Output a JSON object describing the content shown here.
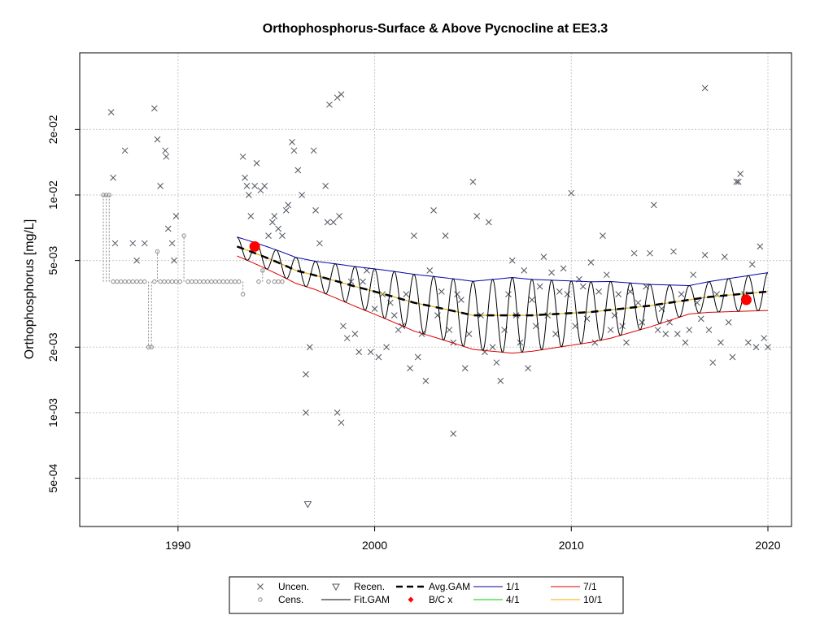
{
  "chart_data": {
    "type": "scatter",
    "title": "Orthophosphorus-Surface & Above Pycnocline at EE3.3",
    "xlabel": "",
    "ylabel": "Orthophosphorus [mg/L]",
    "y_scale": "log",
    "xlim": [
      1985,
      2021.2
    ],
    "ylim": [
      0.0003,
      0.045
    ],
    "grid": true,
    "x_ticks": [
      {
        "value": 1990,
        "label": "1990"
      },
      {
        "value": 2000,
        "label": "2000"
      },
      {
        "value": 2010,
        "label": "2010"
      },
      {
        "value": 2020,
        "label": "2020"
      }
    ],
    "y_ticks": [
      {
        "value": 0.0005,
        "label": "5e-04"
      },
      {
        "value": 0.001,
        "label": "1e-03"
      },
      {
        "value": 0.002,
        "label": "2e-03"
      },
      {
        "value": 0.005,
        "label": "5e-03"
      },
      {
        "value": 0.01,
        "label": "1e-02"
      },
      {
        "value": 0.02,
        "label": "2e-02"
      }
    ],
    "colors": {
      "uncen": "#4f5560",
      "cens": "#888888",
      "recen": "#4f5560",
      "fit": "#000000",
      "avg": "#000000",
      "bc": "#ff0000",
      "s1_1": "#0000aa",
      "s4_1": "#00cc00",
      "s7_1": "#dd0000",
      "s10_1": "#ffa500"
    },
    "series": [
      {
        "name": "Uncen.",
        "kind": "points",
        "points": [
          [
            1986.6,
            0.024
          ],
          [
            1986.7,
            0.012
          ],
          [
            1986.8,
            0.006
          ],
          [
            1987.3,
            0.016
          ],
          [
            1987.7,
            0.006
          ],
          [
            1987.9,
            0.005
          ],
          [
            1988.3,
            0.006
          ],
          [
            1988.8,
            0.025
          ],
          [
            1988.95,
            0.018
          ],
          [
            1989.1,
            0.011
          ],
          [
            1989.35,
            0.016
          ],
          [
            1989.4,
            0.015
          ],
          [
            1989.5,
            0.007
          ],
          [
            1989.7,
            0.006
          ],
          [
            1989.8,
            0.005
          ],
          [
            1989.9,
            0.008
          ],
          [
            1993.3,
            0.015
          ],
          [
            1993.4,
            0.012
          ],
          [
            1993.5,
            0.011
          ],
          [
            1993.6,
            0.01
          ],
          [
            1993.7,
            0.008
          ],
          [
            1993.9,
            0.011
          ],
          [
            1994.0,
            0.014
          ],
          [
            1994.2,
            0.0105
          ],
          [
            1994.4,
            0.011
          ],
          [
            1994.6,
            0.0065
          ],
          [
            1994.8,
            0.0075
          ],
          [
            1994.9,
            0.008
          ],
          [
            1995.1,
            0.007
          ],
          [
            1995.3,
            0.0065
          ],
          [
            1995.5,
            0.0085
          ],
          [
            1995.6,
            0.009
          ],
          [
            1995.8,
            0.0175
          ],
          [
            1995.9,
            0.016
          ],
          [
            1996.1,
            0.013
          ],
          [
            1996.3,
            0.01
          ],
          [
            1996.5,
            0.0015
          ],
          [
            1996.7,
            0.002
          ],
          [
            1996.9,
            0.016
          ],
          [
            1997.0,
            0.0085
          ],
          [
            1997.2,
            0.006
          ],
          [
            1997.5,
            0.011
          ],
          [
            1997.6,
            0.0075
          ],
          [
            1997.7,
            0.026
          ],
          [
            1997.9,
            0.0075
          ],
          [
            1998.1,
            0.028
          ],
          [
            1998.2,
            0.008
          ],
          [
            1998.3,
            0.029
          ],
          [
            1998.4,
            0.0025
          ],
          [
            1998.6,
            0.0022
          ],
          [
            1998.8,
            0.004
          ],
          [
            1999.0,
            0.0023
          ],
          [
            1999.2,
            0.0019
          ],
          [
            1999.4,
            0.004
          ],
          [
            1999.6,
            0.0045
          ],
          [
            1999.8,
            0.0019
          ],
          [
            2000.0,
            0.003
          ],
          [
            2000.2,
            0.0018
          ],
          [
            2000.4,
            0.0035
          ],
          [
            2000.6,
            0.002
          ],
          [
            2000.8,
            0.0032
          ],
          [
            2001.0,
            0.0028
          ],
          [
            2001.2,
            0.0024
          ],
          [
            2001.4,
            0.0025
          ],
          [
            2001.6,
            0.0035
          ],
          [
            2001.8,
            0.0016
          ],
          [
            2002.0,
            0.0065
          ],
          [
            2002.2,
            0.0018
          ],
          [
            2002.4,
            0.0023
          ],
          [
            2002.6,
            0.0014
          ],
          [
            2002.8,
            0.0045
          ],
          [
            2003.0,
            0.0085
          ],
          [
            2003.2,
            0.0028
          ],
          [
            2003.4,
            0.0036
          ],
          [
            2003.6,
            0.0065
          ],
          [
            2003.8,
            0.0024
          ],
          [
            2004.0,
            0.0021
          ],
          [
            2004.2,
            0.0035
          ],
          [
            2004.4,
            0.0033
          ],
          [
            2004.6,
            0.0016
          ],
          [
            2004.8,
            0.0023
          ],
          [
            2005.0,
            0.0115
          ],
          [
            2005.2,
            0.008
          ],
          [
            2005.4,
            0.0028
          ],
          [
            2005.6,
            0.0019
          ],
          [
            2005.8,
            0.0075
          ],
          [
            2006.0,
            0.002
          ],
          [
            2006.2,
            0.0017
          ],
          [
            2006.4,
            0.0014
          ],
          [
            2006.6,
            0.0024
          ],
          [
            2006.8,
            0.0035
          ],
          [
            2007.0,
            0.005
          ],
          [
            2007.2,
            0.0028
          ],
          [
            2007.4,
            0.0021
          ],
          [
            2007.6,
            0.0045
          ],
          [
            2007.8,
            0.0016
          ],
          [
            2008.0,
            0.0033
          ],
          [
            2008.2,
            0.0025
          ],
          [
            2008.4,
            0.0038
          ],
          [
            2008.6,
            0.0052
          ],
          [
            2008.8,
            0.0028
          ],
          [
            2009.0,
            0.0044
          ],
          [
            2009.2,
            0.0023
          ],
          [
            2009.4,
            0.0036
          ],
          [
            2009.6,
            0.0046
          ],
          [
            2009.8,
            0.0035
          ],
          [
            2010.0,
            0.0102
          ],
          [
            2010.2,
            0.0025
          ],
          [
            2010.4,
            0.0041
          ],
          [
            2010.6,
            0.0038
          ],
          [
            2010.8,
            0.0027
          ],
          [
            2011.0,
            0.0049
          ],
          [
            2011.2,
            0.0021
          ],
          [
            2011.4,
            0.0036
          ],
          [
            2011.6,
            0.0065
          ],
          [
            2011.8,
            0.0043
          ],
          [
            2012.0,
            0.0024
          ],
          [
            2012.2,
            0.0028
          ],
          [
            2012.4,
            0.0035
          ],
          [
            2012.6,
            0.0025
          ],
          [
            2012.8,
            0.0021
          ],
          [
            2013.0,
            0.0036
          ],
          [
            2013.2,
            0.0054
          ],
          [
            2013.4,
            0.0032
          ],
          [
            2013.6,
            0.0026
          ],
          [
            2013.8,
            0.0038
          ],
          [
            2014.0,
            0.0054
          ],
          [
            2014.2,
            0.009
          ],
          [
            2014.4,
            0.0024
          ],
          [
            2014.6,
            0.003
          ],
          [
            2014.8,
            0.0023
          ],
          [
            2015.0,
            0.0026
          ],
          [
            2015.2,
            0.0055
          ],
          [
            2015.4,
            0.0023
          ],
          [
            2015.6,
            0.0035
          ],
          [
            2015.8,
            0.0021
          ],
          [
            2016.0,
            0.0024
          ],
          [
            2016.2,
            0.0043
          ],
          [
            2016.4,
            0.0032
          ],
          [
            2016.6,
            0.0027
          ],
          [
            2016.8,
            0.0053
          ],
          [
            2017.0,
            0.0024
          ],
          [
            2017.2,
            0.0017
          ],
          [
            2017.4,
            0.0035
          ],
          [
            2017.6,
            0.0021
          ],
          [
            2017.8,
            0.0052
          ],
          [
            2018.0,
            0.0026
          ],
          [
            2018.2,
            0.0018
          ],
          [
            2018.4,
            0.0115
          ],
          [
            2018.6,
            0.0125
          ],
          [
            2018.8,
            0.0035
          ],
          [
            2019.0,
            0.0021
          ],
          [
            2019.2,
            0.0048
          ],
          [
            2019.4,
            0.002
          ],
          [
            2019.6,
            0.0058
          ],
          [
            2019.8,
            0.0022
          ],
          [
            2020.0,
            0.002
          ],
          [
            2016.8,
            0.031
          ],
          [
            2004.0,
            0.0008
          ],
          [
            2018.5,
            0.0115
          ],
          [
            1996.5,
            0.001
          ],
          [
            1998.1,
            0.001
          ],
          [
            1998.3,
            0.0009
          ]
        ]
      },
      {
        "name": "Cens.",
        "kind": "points",
        "points": [
          [
            1986.2,
            0.01
          ],
          [
            1986.35,
            0.01
          ],
          [
            1986.5,
            0.01
          ],
          [
            1986.7,
            0.004
          ],
          [
            1986.9,
            0.004
          ],
          [
            1987.1,
            0.004
          ],
          [
            1987.3,
            0.004
          ],
          [
            1987.5,
            0.004
          ],
          [
            1987.7,
            0.004
          ],
          [
            1987.9,
            0.004
          ],
          [
            1988.1,
            0.004
          ],
          [
            1988.3,
            0.004
          ],
          [
            1988.5,
            0.002
          ],
          [
            1988.65,
            0.002
          ],
          [
            1988.8,
            0.004
          ],
          [
            1988.95,
            0.0055
          ],
          [
            1989.1,
            0.004
          ],
          [
            1989.3,
            0.004
          ],
          [
            1989.5,
            0.004
          ],
          [
            1989.7,
            0.004
          ],
          [
            1989.9,
            0.004
          ],
          [
            1990.1,
            0.004
          ],
          [
            1990.3,
            0.0065
          ],
          [
            1990.5,
            0.004
          ],
          [
            1990.7,
            0.004
          ],
          [
            1990.9,
            0.004
          ],
          [
            1991.1,
            0.004
          ],
          [
            1991.3,
            0.004
          ],
          [
            1991.5,
            0.004
          ],
          [
            1991.7,
            0.004
          ],
          [
            1991.9,
            0.004
          ],
          [
            1992.1,
            0.004
          ],
          [
            1992.3,
            0.004
          ],
          [
            1992.5,
            0.004
          ],
          [
            1992.7,
            0.004
          ],
          [
            1992.9,
            0.004
          ],
          [
            1993.1,
            0.004
          ],
          [
            1993.3,
            0.0035
          ],
          [
            1994.1,
            0.004
          ],
          [
            1994.3,
            0.0045
          ],
          [
            1994.6,
            0.004
          ],
          [
            1994.9,
            0.004
          ],
          [
            1995.1,
            0.004
          ],
          [
            1995.3,
            0.004
          ]
        ]
      },
      {
        "name": "Recen.",
        "kind": "points",
        "points": [
          [
            1996.6,
            0.00038
          ]
        ]
      },
      {
        "name": "Fit.GAM",
        "kind": "line"
      },
      {
        "name": "Avg.GAM",
        "kind": "line"
      },
      {
        "name": "B/C x",
        "kind": "points",
        "points": [
          [
            1993.9,
            0.0058
          ],
          [
            2018.9,
            0.0033
          ]
        ]
      },
      {
        "name": "1/1",
        "kind": "line"
      },
      {
        "name": "4/1",
        "kind": "line"
      },
      {
        "name": "7/1",
        "kind": "line"
      },
      {
        "name": "10/1",
        "kind": "line"
      }
    ],
    "gam": {
      "x_range": [
        1993,
        2020
      ],
      "mean_knots": [
        [
          1993.0,
          0.0058
        ],
        [
          1996.0,
          0.0045
        ],
        [
          1999.0,
          0.0038
        ],
        [
          2002.0,
          0.0032
        ],
        [
          2005.0,
          0.0028
        ],
        [
          2008.0,
          0.0028
        ],
        [
          2011.0,
          0.0029
        ],
        [
          2014.0,
          0.0031
        ],
        [
          2017.0,
          0.0034
        ],
        [
          2020.0,
          0.0036
        ]
      ],
      "amp_knots": [
        [
          1993.0,
          0.1
        ],
        [
          1997.0,
          0.15
        ],
        [
          2002.0,
          0.3
        ],
        [
          2007.0,
          0.4
        ],
        [
          2012.0,
          0.3
        ],
        [
          2016.0,
          0.15
        ],
        [
          2020.0,
          0.2
        ]
      ],
      "phase_months": {
        "1/1": 0.0,
        "4/1": 3.0,
        "7/1": 6.0,
        "10/1": 9.0
      }
    },
    "legend": {
      "position": "bottom",
      "entries": [
        "Uncen.",
        "Recen.",
        "Avg.GAM",
        "1/1",
        "7/1",
        "Cens.",
        "Fit.GAM",
        "B/C x",
        "4/1",
        "10/1"
      ]
    }
  }
}
